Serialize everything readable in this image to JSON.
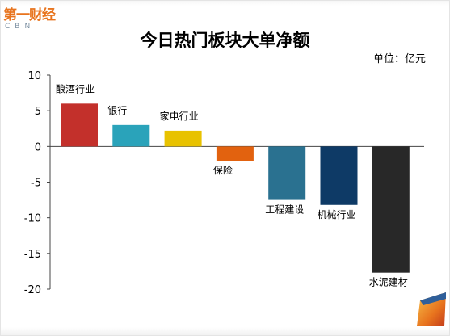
{
  "logo": {
    "text": "第一财经",
    "subtext": "CBN"
  },
  "title": "今日热门板块大单净额",
  "unit": "单位：亿元",
  "chart_data": {
    "type": "bar",
    "title": "今日热门板块大单净额",
    "xlabel": "",
    "ylabel": "",
    "unit": "单位：亿元",
    "categories": [
      "酿酒行业",
      "银行",
      "家电行业",
      "保险",
      "工程建设",
      "机械行业",
      "水泥建材"
    ],
    "values": [
      6.0,
      3.0,
      2.2,
      -2.0,
      -7.5,
      -8.2,
      -17.7
    ],
    "ylim": [
      -20,
      10
    ],
    "yticks": [
      10,
      5,
      0,
      -5,
      -10,
      -15,
      -20
    ],
    "colors": [
      "#c3302b",
      "#2aa3ba",
      "#e8c200",
      "#e2620f",
      "#2a7190",
      "#0e3a66",
      "#282828"
    ],
    "grid": false,
    "legend": "none"
  },
  "colors": {
    "axis": "#444444",
    "logo": "#e8741e"
  }
}
